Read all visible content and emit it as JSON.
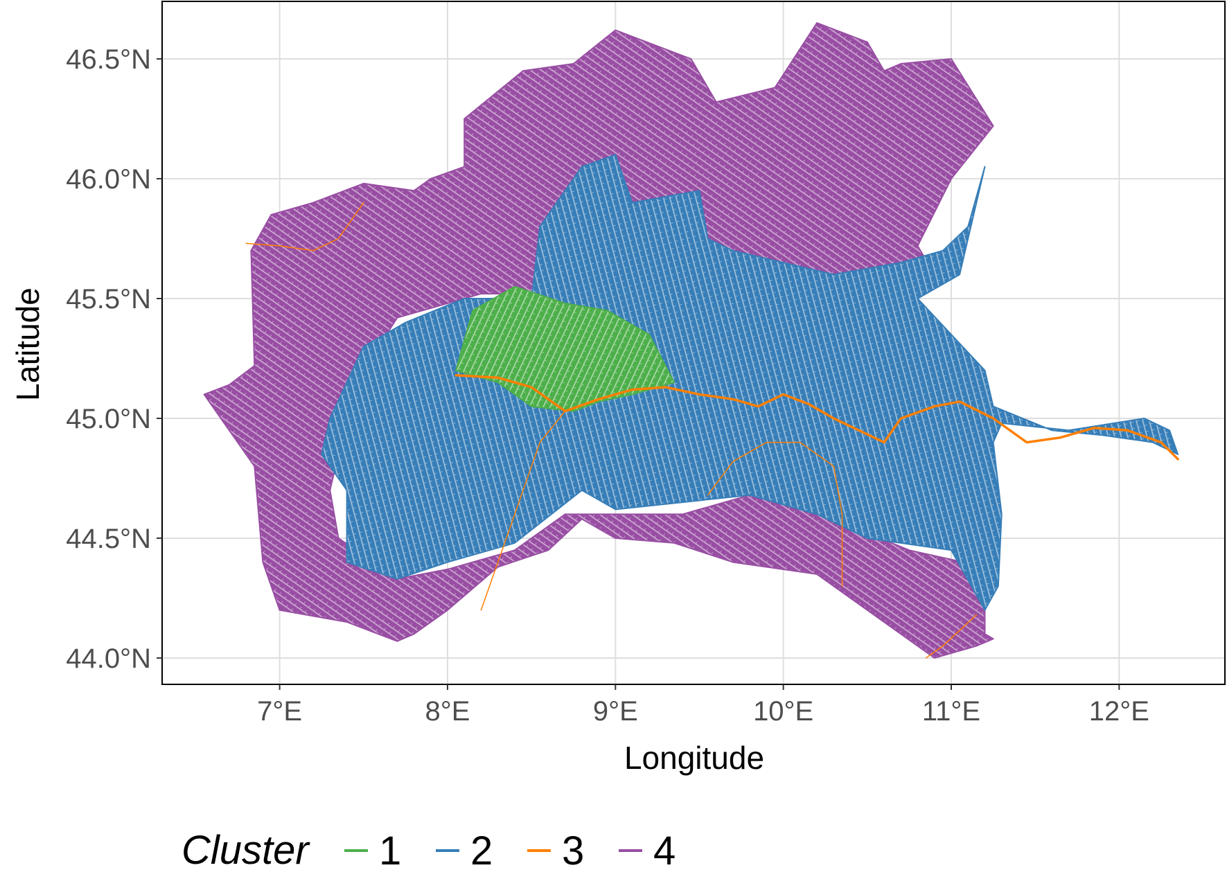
{
  "chart_data": {
    "type": "map",
    "xlabel": "Longitude",
    "ylabel": "Latitude",
    "xlim": [
      6.3,
      12.63
    ],
    "ylim": [
      43.89,
      46.74
    ],
    "x_ticks": [
      {
        "value": 7,
        "label": "7°E"
      },
      {
        "value": 8,
        "label": "8°E"
      },
      {
        "value": 9,
        "label": "9°E"
      },
      {
        "value": 10,
        "label": "10°E"
      },
      {
        "value": 11,
        "label": "11°E"
      },
      {
        "value": 12,
        "label": "12°E"
      }
    ],
    "y_ticks": [
      {
        "value": 44.0,
        "label": "44.0°N"
      },
      {
        "value": 44.5,
        "label": "44.5°N"
      },
      {
        "value": 45.0,
        "label": "45.0°N"
      },
      {
        "value": 45.5,
        "label": "45.5°N"
      },
      {
        "value": 46.0,
        "label": "46.0°N"
      },
      {
        "value": 46.5,
        "label": "46.5°N"
      }
    ],
    "grid": true,
    "legend": {
      "title": "Cluster",
      "position": "bottom-left",
      "entries": [
        {
          "label": "1",
          "color": "#4daf4a"
        },
        {
          "label": "2",
          "color": "#377eb8"
        },
        {
          "label": "3",
          "color": "#ff7f00"
        },
        {
          "label": "4",
          "color": "#984ea3"
        }
      ]
    },
    "regions": [
      {
        "cluster": "4",
        "color": "#984ea3",
        "path": [
          [
            6.55,
            45.1
          ],
          [
            6.7,
            45.14
          ],
          [
            6.85,
            45.22
          ],
          [
            6.83,
            45.7
          ],
          [
            6.95,
            45.85
          ],
          [
            7.2,
            45.9
          ],
          [
            7.5,
            45.98
          ],
          [
            7.8,
            45.95
          ],
          [
            7.9,
            46.0
          ],
          [
            8.1,
            46.05
          ],
          [
            8.1,
            46.25
          ],
          [
            8.45,
            46.45
          ],
          [
            8.75,
            46.48
          ],
          [
            9.0,
            46.62
          ],
          [
            9.45,
            46.5
          ],
          [
            9.6,
            46.32
          ],
          [
            9.95,
            46.38
          ],
          [
            10.2,
            46.65
          ],
          [
            10.5,
            46.57
          ],
          [
            10.6,
            46.45
          ],
          [
            10.7,
            46.48
          ],
          [
            11.0,
            46.5
          ],
          [
            11.25,
            46.22
          ],
          [
            11.0,
            46.0
          ],
          [
            10.8,
            45.72
          ],
          [
            10.9,
            45.6
          ],
          [
            10.5,
            45.55
          ],
          [
            9.8,
            45.55
          ],
          [
            9.2,
            45.65
          ],
          [
            8.8,
            45.55
          ],
          [
            8.5,
            45.52
          ],
          [
            8.2,
            45.52
          ],
          [
            7.7,
            45.42
          ],
          [
            7.5,
            45.2
          ],
          [
            7.4,
            45.0
          ],
          [
            7.3,
            44.7
          ],
          [
            7.35,
            44.5
          ],
          [
            7.7,
            44.33
          ],
          [
            8.0,
            44.37
          ],
          [
            8.4,
            44.45
          ],
          [
            8.7,
            44.6
          ],
          [
            9.0,
            44.6
          ],
          [
            9.4,
            44.6
          ],
          [
            9.9,
            44.7
          ],
          [
            10.4,
            44.55
          ],
          [
            10.75,
            44.45
          ],
          [
            11.2,
            44.38
          ],
          [
            11.2,
            44.1
          ],
          [
            11.25,
            44.08
          ],
          [
            11.15,
            44.05
          ],
          [
            10.9,
            44.0
          ],
          [
            10.5,
            44.2
          ],
          [
            10.2,
            44.35
          ],
          [
            9.7,
            44.4
          ],
          [
            9.35,
            44.48
          ],
          [
            9.0,
            44.5
          ],
          [
            8.8,
            44.58
          ],
          [
            8.6,
            44.45
          ],
          [
            8.3,
            44.38
          ],
          [
            8.0,
            44.2
          ],
          [
            7.8,
            44.1
          ],
          [
            7.7,
            44.07
          ],
          [
            7.4,
            44.15
          ],
          [
            7.0,
            44.2
          ],
          [
            6.9,
            44.4
          ],
          [
            6.85,
            44.8
          ],
          [
            6.65,
            45.0
          ],
          [
            6.55,
            45.1
          ]
        ]
      },
      {
        "cluster": "2",
        "color": "#377eb8",
        "path": [
          [
            7.3,
            45.0
          ],
          [
            7.5,
            45.3
          ],
          [
            7.75,
            45.4
          ],
          [
            8.1,
            45.5
          ],
          [
            8.5,
            45.5
          ],
          [
            8.55,
            45.8
          ],
          [
            8.7,
            45.95
          ],
          [
            8.8,
            46.05
          ],
          [
            9.0,
            46.1
          ],
          [
            9.1,
            45.9
          ],
          [
            9.5,
            45.95
          ],
          [
            9.55,
            45.75
          ],
          [
            9.7,
            45.7
          ],
          [
            10.3,
            45.6
          ],
          [
            10.7,
            45.65
          ],
          [
            10.95,
            45.7
          ],
          [
            11.1,
            45.8
          ],
          [
            11.2,
            46.05
          ],
          [
            11.05,
            45.6
          ],
          [
            10.8,
            45.5
          ],
          [
            11.2,
            45.2
          ],
          [
            11.25,
            45.05
          ],
          [
            11.6,
            44.95
          ],
          [
            11.9,
            44.93
          ],
          [
            12.2,
            44.9
          ],
          [
            12.35,
            44.85
          ],
          [
            12.3,
            44.95
          ],
          [
            12.15,
            45.0
          ],
          [
            11.7,
            44.95
          ],
          [
            11.3,
            44.98
          ],
          [
            11.25,
            44.9
          ],
          [
            11.3,
            44.6
          ],
          [
            11.28,
            44.3
          ],
          [
            11.2,
            44.2
          ],
          [
            11.0,
            44.45
          ],
          [
            10.5,
            44.5
          ],
          [
            10.2,
            44.6
          ],
          [
            9.8,
            44.68
          ],
          [
            9.4,
            44.65
          ],
          [
            9.0,
            44.62
          ],
          [
            8.8,
            44.7
          ],
          [
            8.4,
            44.48
          ],
          [
            8.0,
            44.4
          ],
          [
            7.7,
            44.33
          ],
          [
            7.4,
            44.4
          ],
          [
            7.4,
            44.7
          ],
          [
            7.25,
            44.85
          ],
          [
            7.3,
            45.0
          ]
        ]
      },
      {
        "cluster": "1",
        "color": "#4daf4a",
        "path": [
          [
            8.05,
            45.2
          ],
          [
            8.15,
            45.45
          ],
          [
            8.4,
            45.55
          ],
          [
            8.7,
            45.48
          ],
          [
            8.95,
            45.45
          ],
          [
            9.2,
            45.35
          ],
          [
            9.35,
            45.15
          ],
          [
            9.1,
            45.1
          ],
          [
            8.9,
            45.07
          ],
          [
            8.75,
            45.03
          ],
          [
            8.5,
            45.05
          ],
          [
            8.3,
            45.15
          ],
          [
            8.05,
            45.2
          ]
        ]
      }
    ],
    "rivers": [
      {
        "cluster": "3",
        "color": "#ff7f00",
        "width": 3.5,
        "path": [
          [
            8.05,
            45.18
          ],
          [
            8.3,
            45.17
          ],
          [
            8.5,
            45.13
          ],
          [
            8.6,
            45.08
          ],
          [
            8.7,
            45.03
          ],
          [
            8.9,
            45.08
          ],
          [
            9.1,
            45.12
          ],
          [
            9.3,
            45.13
          ],
          [
            9.5,
            45.1
          ],
          [
            9.7,
            45.08
          ],
          [
            9.85,
            45.05
          ],
          [
            10.0,
            45.1
          ],
          [
            10.15,
            45.06
          ],
          [
            10.3,
            45.0
          ],
          [
            10.45,
            44.95
          ],
          [
            10.6,
            44.9
          ],
          [
            10.7,
            45.0
          ],
          [
            10.9,
            45.05
          ],
          [
            11.05,
            45.07
          ],
          [
            11.25,
            45.0
          ],
          [
            11.45,
            44.9
          ],
          [
            11.65,
            44.92
          ],
          [
            11.85,
            44.96
          ],
          [
            12.05,
            44.95
          ],
          [
            12.25,
            44.9
          ],
          [
            12.35,
            44.83
          ]
        ]
      },
      {
        "cluster": "3",
        "color": "#ff7f00",
        "width": 1.5,
        "path": [
          [
            8.7,
            45.03
          ],
          [
            8.55,
            44.9
          ],
          [
            8.45,
            44.7
          ],
          [
            8.3,
            44.4
          ],
          [
            8.2,
            44.2
          ]
        ]
      },
      {
        "cluster": "3",
        "color": "#ff7f00",
        "width": 1.5,
        "path": [
          [
            9.55,
            44.68
          ],
          [
            9.7,
            44.82
          ],
          [
            9.9,
            44.9
          ],
          [
            10.1,
            44.9
          ],
          [
            10.3,
            44.8
          ],
          [
            10.35,
            44.6
          ],
          [
            10.35,
            44.3
          ]
        ]
      },
      {
        "cluster": "3",
        "color": "#ff7f00",
        "width": 1.5,
        "path": [
          [
            6.8,
            45.73
          ],
          [
            7.0,
            45.72
          ],
          [
            7.2,
            45.7
          ],
          [
            7.35,
            45.75
          ],
          [
            7.5,
            45.9
          ]
        ]
      },
      {
        "cluster": "3",
        "color": "#ff7f00",
        "width": 1.5,
        "path": [
          [
            11.15,
            44.18
          ],
          [
            10.95,
            44.05
          ],
          [
            10.85,
            44.0
          ]
        ]
      }
    ]
  }
}
